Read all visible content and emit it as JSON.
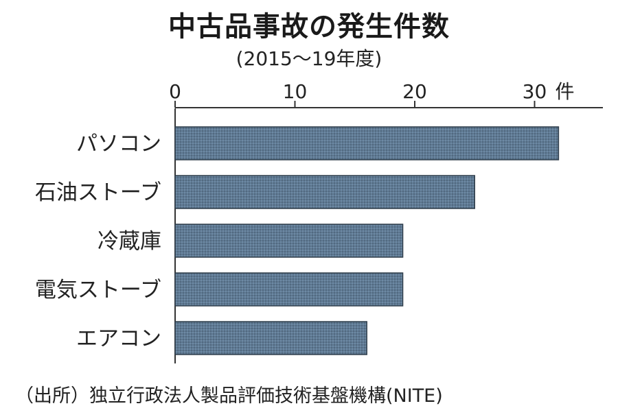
{
  "chart_data": {
    "type": "bar",
    "orientation": "horizontal",
    "title": "中古品事故の発生件数",
    "subtitle": "(2015～19年度)",
    "unit": "件",
    "categories": [
      "パソコン",
      "石油ストーブ",
      "冷蔵庫",
      "電気ストーブ",
      "エアコン"
    ],
    "values": [
      32,
      25,
      19,
      19,
      16
    ],
    "xlim": [
      0,
      35
    ],
    "xticks": [
      0,
      10,
      20,
      30
    ],
    "grid": false,
    "bar_color": "#5f7a94",
    "source": "（出所）独立行政法人製品評価技術基盤機構(NITE)"
  }
}
